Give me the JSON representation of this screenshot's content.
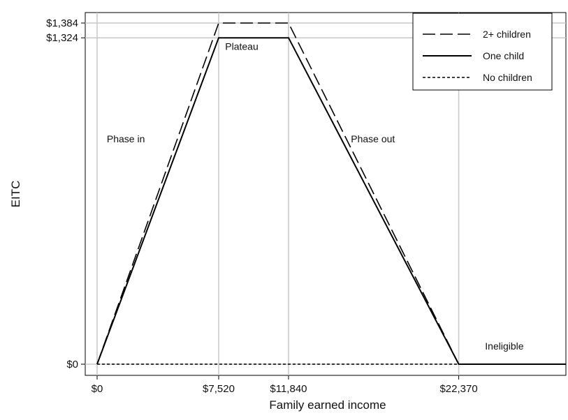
{
  "chart_data": {
    "type": "line",
    "xlabel": "Family earned income",
    "ylabel": "EITC",
    "xlim": [
      0,
      29000
    ],
    "ylim": [
      0,
      1384
    ],
    "x_ticks": [
      {
        "value": 0,
        "label": "$0"
      },
      {
        "value": 7520,
        "label": "$7,520"
      },
      {
        "value": 11840,
        "label": "$11,840"
      },
      {
        "value": 22370,
        "label": "$22,370"
      }
    ],
    "y_ticks": [
      {
        "value": 0,
        "label": "$0"
      },
      {
        "value": 1324,
        "label": "$1,324"
      },
      {
        "value": 1384,
        "label": "$1,384"
      }
    ],
    "grid": true,
    "legend": "top-right",
    "series": [
      {
        "name": "2+ children",
        "style": "long-dash",
        "x": [
          0,
          7520,
          11840,
          22370,
          29000
        ],
        "y": [
          0,
          1384,
          1384,
          0,
          0
        ]
      },
      {
        "name": "One child",
        "style": "solid",
        "x": [
          0,
          7520,
          11840,
          22370,
          29000
        ],
        "y": [
          0,
          1324,
          1324,
          0,
          0
        ]
      },
      {
        "name": "No children",
        "style": "short-dash",
        "x": [
          0,
          29000
        ],
        "y": [
          0,
          0
        ]
      }
    ],
    "annotations": [
      {
        "text": "Phase in",
        "x": 600,
        "y": 900
      },
      {
        "text": "Plateau",
        "x": 7920,
        "y": 1275
      },
      {
        "text": "Phase out",
        "x": 15700,
        "y": 900
      },
      {
        "text": "Ineligible",
        "x": 24000,
        "y": 60
      }
    ]
  }
}
